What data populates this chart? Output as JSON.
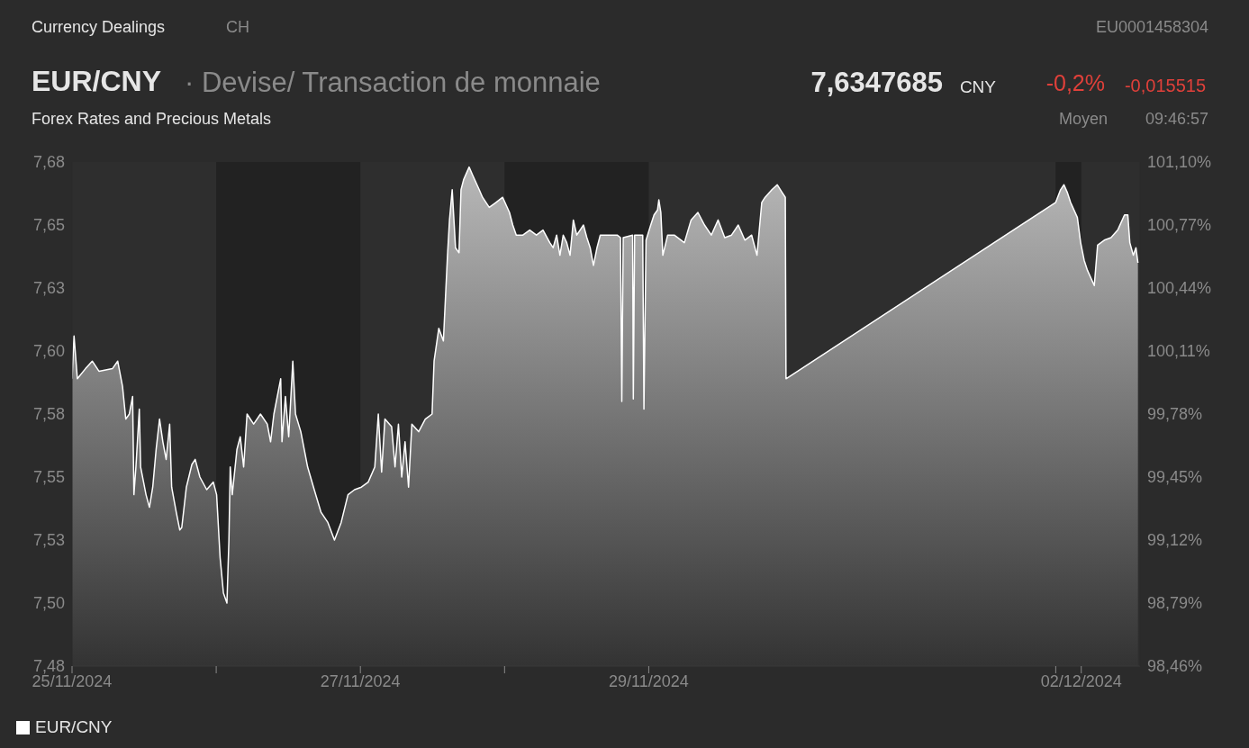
{
  "chart_data": {
    "type": "area",
    "title": "EUR/CNY",
    "subtitle": "· Devise/ Transaction de monnaie",
    "annotations": [
      "Currency Dealings",
      "CH",
      "EU0001458304",
      "7,6347685",
      "CNY",
      "-0,2%",
      "-0,015515",
      "Forex Rates and Precious Metals",
      "Moyen",
      "09:46:57"
    ],
    "x": [
      "2024-11-25T00:00",
      "2024-11-25T00:20",
      "2024-11-25T00:53",
      "2024-11-25T02:14",
      "2024-11-25T03:22",
      "2024-11-25T04:29",
      "2024-11-25T06:43",
      "2024-11-25T07:36",
      "2024-11-25T08:24",
      "2024-11-25T08:57",
      "2024-11-25T09:32",
      "2024-11-25T10:05",
      "2024-11-25T10:18",
      "2024-11-25T10:38",
      "2024-11-25T11:12",
      "2024-11-25T11:25",
      "2024-11-25T12:19",
      "2024-11-25T12:53",
      "2024-11-25T13:26",
      "2024-11-25T14:00",
      "2024-11-25T14:34",
      "2024-11-25T15:07",
      "2024-11-25T15:40",
      "2024-11-25T16:15",
      "2024-11-25T16:35",
      "2024-11-25T17:21",
      "2024-11-25T17:56",
      "2024-11-25T18:16",
      "2024-11-25T19:02",
      "2024-11-25T19:57",
      "2024-11-25T20:30",
      "2024-11-25T21:17",
      "2024-11-25T22:25",
      "2024-11-25T23:31",
      "2024-11-26T00:04",
      "2024-11-26T00:39",
      "2024-11-26T01:12",
      "2024-11-26T01:47",
      "2024-11-26T02:07",
      "2024-11-26T02:20",
      "2024-11-26T02:40",
      "2024-11-26T03:27",
      "2024-11-26T04:00",
      "2024-11-26T04:34",
      "2024-11-26T05:08",
      "2024-11-26T06:14",
      "2024-11-26T07:22",
      "2024-11-26T08:30",
      "2024-11-26T09:03",
      "2024-11-26T09:36",
      "2024-11-26T10:44",
      "2024-11-26T10:57",
      "2024-11-26T11:31",
      "2024-11-26T12:04",
      "2024-11-26T12:45",
      "2024-11-26T13:12",
      "2024-11-26T14:05",
      "2024-11-26T15:13",
      "2024-11-26T16:19",
      "2024-11-26T17:27",
      "2024-11-26T18:35",
      "2024-11-26T19:41",
      "2024-11-26T20:48",
      "2024-11-26T21:56",
      "2024-11-26T23:02",
      "2024-11-27T00:10",
      "2024-11-27T01:18",
      "2024-11-27T02:24",
      "2024-11-27T02:59",
      "2024-11-27T03:32",
      "2024-11-27T04:05",
      "2024-11-27T05:12",
      "2024-11-27T05:46",
      "2024-11-27T06:20",
      "2024-11-27T06:53",
      "2024-11-27T07:26",
      "2024-11-27T08:01",
      "2024-11-27T08:34",
      "2024-11-27T09:42",
      "2024-11-27T10:48",
      "2024-11-27T11:56",
      "2024-11-27T12:16",
      "2024-11-27T13:03",
      "2024-11-27T13:49",
      "2024-11-27T14:30",
      "2024-11-27T14:50",
      "2024-11-27T15:17",
      "2024-11-27T15:50",
      "2024-11-27T16:25",
      "2024-11-27T16:45",
      "2024-11-27T17:11",
      "2024-11-27T18:06",
      "2024-11-27T18:39",
      "2024-11-27T19:47",
      "2024-11-27T20:20",
      "2024-11-27T21:27",
      "2024-11-27T22:35",
      "2024-11-27T23:41",
      "2024-11-28T00:49",
      "2024-11-28T01:22",
      "2024-11-28T01:57",
      "2024-11-28T03:03",
      "2024-11-28T04:11",
      "2024-11-28T05:18",
      "2024-11-28T06:24",
      "2024-11-28T07:32",
      "2024-11-28T08:05",
      "2024-11-28T08:40",
      "2024-11-28T09:13",
      "2024-11-28T09:46",
      "2024-11-28T10:21",
      "2024-11-28T10:54",
      "2024-11-28T11:27",
      "2024-11-28T12:01",
      "2024-11-28T13:08",
      "2024-11-28T13:42",
      "2024-11-28T14:15",
      "2024-11-28T14:48",
      "2024-11-28T15:23",
      "2024-11-28T15:56",
      "2024-11-28T16:29",
      "2024-11-28T17:37",
      "2024-11-28T18:45",
      "2024-11-28T19:18",
      "2024-11-28T19:31",
      "2024-11-28T19:45",
      "2024-11-28T21:19",
      "2024-11-28T21:26",
      "2024-11-28T21:39",
      "2024-11-28T23:00",
      "2024-11-28T23:12",
      "2024-11-28T23:33",
      "2024-11-29T00:20",
      "2024-11-29T00:53",
      "2024-11-29T01:28",
      "2024-11-29T01:41",
      "2024-11-29T02:01",
      "2024-11-29T02:21",
      "2024-11-29T03:09",
      "2024-11-29T04:15",
      "2024-11-29T05:56",
      "2024-11-29T07:03",
      "2024-11-29T08:11",
      "2024-11-29T09:17",
      "2024-11-29T10:25",
      "2024-11-29T11:33",
      "2024-11-29T12:39",
      "2024-11-29T13:47",
      "2024-11-29T14:54",
      "2024-11-29T16:00",
      "2024-11-29T17:08",
      "2024-11-29T18:01",
      "2024-11-29T18:49",
      "2024-11-29T19:22",
      "2024-11-29T20:30",
      "2024-11-29T21:23",
      "2024-11-29T22:11",
      "2024-11-29T22:44",
      "2024-11-29T22:51",
      "2024-12-01T19:45",
      "2024-12-01T20:33",
      "2024-12-01T21:07",
      "2024-12-01T21:40",
      "2024-12-01T22:13",
      "2024-12-01T23:21",
      "2024-12-01T23:54",
      "2024-12-02T00:29",
      "2024-12-02T01:02",
      "2024-12-02T02:10",
      "2024-12-02T02:43",
      "2024-12-02T03:50",
      "2024-12-02T04:57",
      "2024-12-02T06:04",
      "2024-12-02T07:12",
      "2024-12-02T07:45",
      "2024-12-02T08:05",
      "2024-12-02T08:40",
      "2024-12-02T09:06",
      "2024-12-02T09:26"
    ],
    "series": [
      {
        "name": "EUR/CNY",
        "color": "#ffffff",
        "values": [
          7.594,
          7.611,
          7.594,
          7.598,
          7.601,
          7.597,
          7.598,
          7.601,
          7.591,
          7.578,
          7.58,
          7.587,
          7.548,
          7.559,
          7.582,
          7.559,
          7.548,
          7.543,
          7.551,
          7.566,
          7.578,
          7.569,
          7.562,
          7.576,
          7.551,
          7.541,
          7.534,
          7.535,
          7.551,
          7.56,
          7.562,
          7.555,
          7.55,
          7.553,
          7.548,
          7.523,
          7.509,
          7.505,
          7.53,
          7.559,
          7.548,
          7.566,
          7.571,
          7.559,
          7.58,
          7.576,
          7.58,
          7.576,
          7.569,
          7.58,
          7.594,
          7.569,
          7.587,
          7.571,
          7.601,
          7.58,
          7.573,
          7.559,
          7.55,
          7.541,
          7.537,
          7.53,
          7.537,
          7.548,
          7.55,
          7.551,
          7.553,
          7.559,
          7.58,
          7.557,
          7.578,
          7.575,
          7.559,
          7.576,
          7.555,
          7.569,
          7.551,
          7.576,
          7.573,
          7.578,
          7.58,
          7.601,
          7.614,
          7.609,
          7.643,
          7.657,
          7.669,
          7.646,
          7.644,
          7.669,
          7.673,
          7.678,
          7.675,
          7.669,
          7.666,
          7.662,
          7.664,
          7.666,
          7.66,
          7.655,
          7.651,
          7.651,
          7.653,
          7.651,
          7.653,
          7.648,
          7.646,
          7.651,
          7.643,
          7.651,
          7.648,
          7.643,
          7.657,
          7.651,
          7.655,
          7.65,
          7.646,
          7.639,
          7.646,
          7.651,
          7.651,
          7.651,
          7.651,
          7.65,
          7.585,
          7.65,
          7.651,
          7.586,
          7.651,
          7.651,
          7.582,
          7.649,
          7.655,
          7.659,
          7.661,
          7.665,
          7.66,
          7.643,
          7.651,
          7.651,
          7.648,
          7.657,
          7.66,
          7.655,
          7.651,
          7.657,
          7.65,
          7.651,
          7.655,
          7.649,
          7.651,
          7.643,
          7.664,
          7.666,
          7.669,
          7.671,
          7.668,
          7.666,
          7.594,
          7.664,
          7.669,
          7.671,
          7.668,
          7.664,
          7.658,
          7.648,
          7.641,
          7.637,
          7.631,
          7.647,
          7.649,
          7.65,
          7.653,
          7.659,
          7.659,
          7.648,
          7.643,
          7.646,
          7.64
        ]
      }
    ],
    "xlim": [
      "2024-11-25",
      "2024-12-02T09:47"
    ],
    "xticks": [
      {
        "value": "2024-11-25",
        "label": "25/11/2024"
      },
      {
        "value": "2024-11-26",
        "label": null
      },
      {
        "value": "2024-11-27",
        "label": "27/11/2024"
      },
      {
        "value": "2024-11-28",
        "label": null
      },
      {
        "value": "2024-11-29",
        "label": "29/11/2024"
      },
      {
        "value": "2024-12-01T19:45",
        "label": null
      },
      {
        "value": "2024-12-02",
        "label": "02/12/2024"
      }
    ],
    "ylim": [
      7.48,
      7.68
    ],
    "yticks": [
      {
        "value": 7.48,
        "label": "7,48"
      },
      {
        "value": 7.505,
        "label": "7,50"
      },
      {
        "value": 7.53,
        "label": "7,53"
      },
      {
        "value": 7.555,
        "label": "7,55"
      },
      {
        "value": 7.58,
        "label": "7,58"
      },
      {
        "value": 7.605,
        "label": "7,60"
      },
      {
        "value": 7.63,
        "label": "7,63"
      },
      {
        "value": 7.655,
        "label": "7,65"
      },
      {
        "value": 7.68,
        "label": "7,68"
      }
    ],
    "y2lim": [
      98.46,
      101.1
    ],
    "y2ticks": [
      {
        "value": 98.46,
        "label": "98,46%"
      },
      {
        "value": 98.79,
        "label": "98,79%"
      },
      {
        "value": 99.12,
        "label": "99,12%"
      },
      {
        "value": 99.45,
        "label": "99,45%"
      },
      {
        "value": 99.78,
        "label": "99,78%"
      },
      {
        "value": 100.11,
        "label": "100,11%"
      },
      {
        "value": 100.44,
        "label": "100,44%"
      },
      {
        "value": 100.77,
        "label": "100,77%"
      },
      {
        "value": 101.1,
        "label": "101,10%"
      }
    ],
    "bands": [
      {
        "axis": "x",
        "from": "2024-11-26",
        "to": "2024-11-27",
        "color": "#222222"
      },
      {
        "axis": "x",
        "from": "2024-11-28",
        "to": "2024-11-29",
        "color": "#222222"
      },
      {
        "axis": "x",
        "from": "2024-12-01T19:45",
        "to": "2024-12-02",
        "color": "#222222"
      }
    ],
    "legend": "bottom"
  }
}
